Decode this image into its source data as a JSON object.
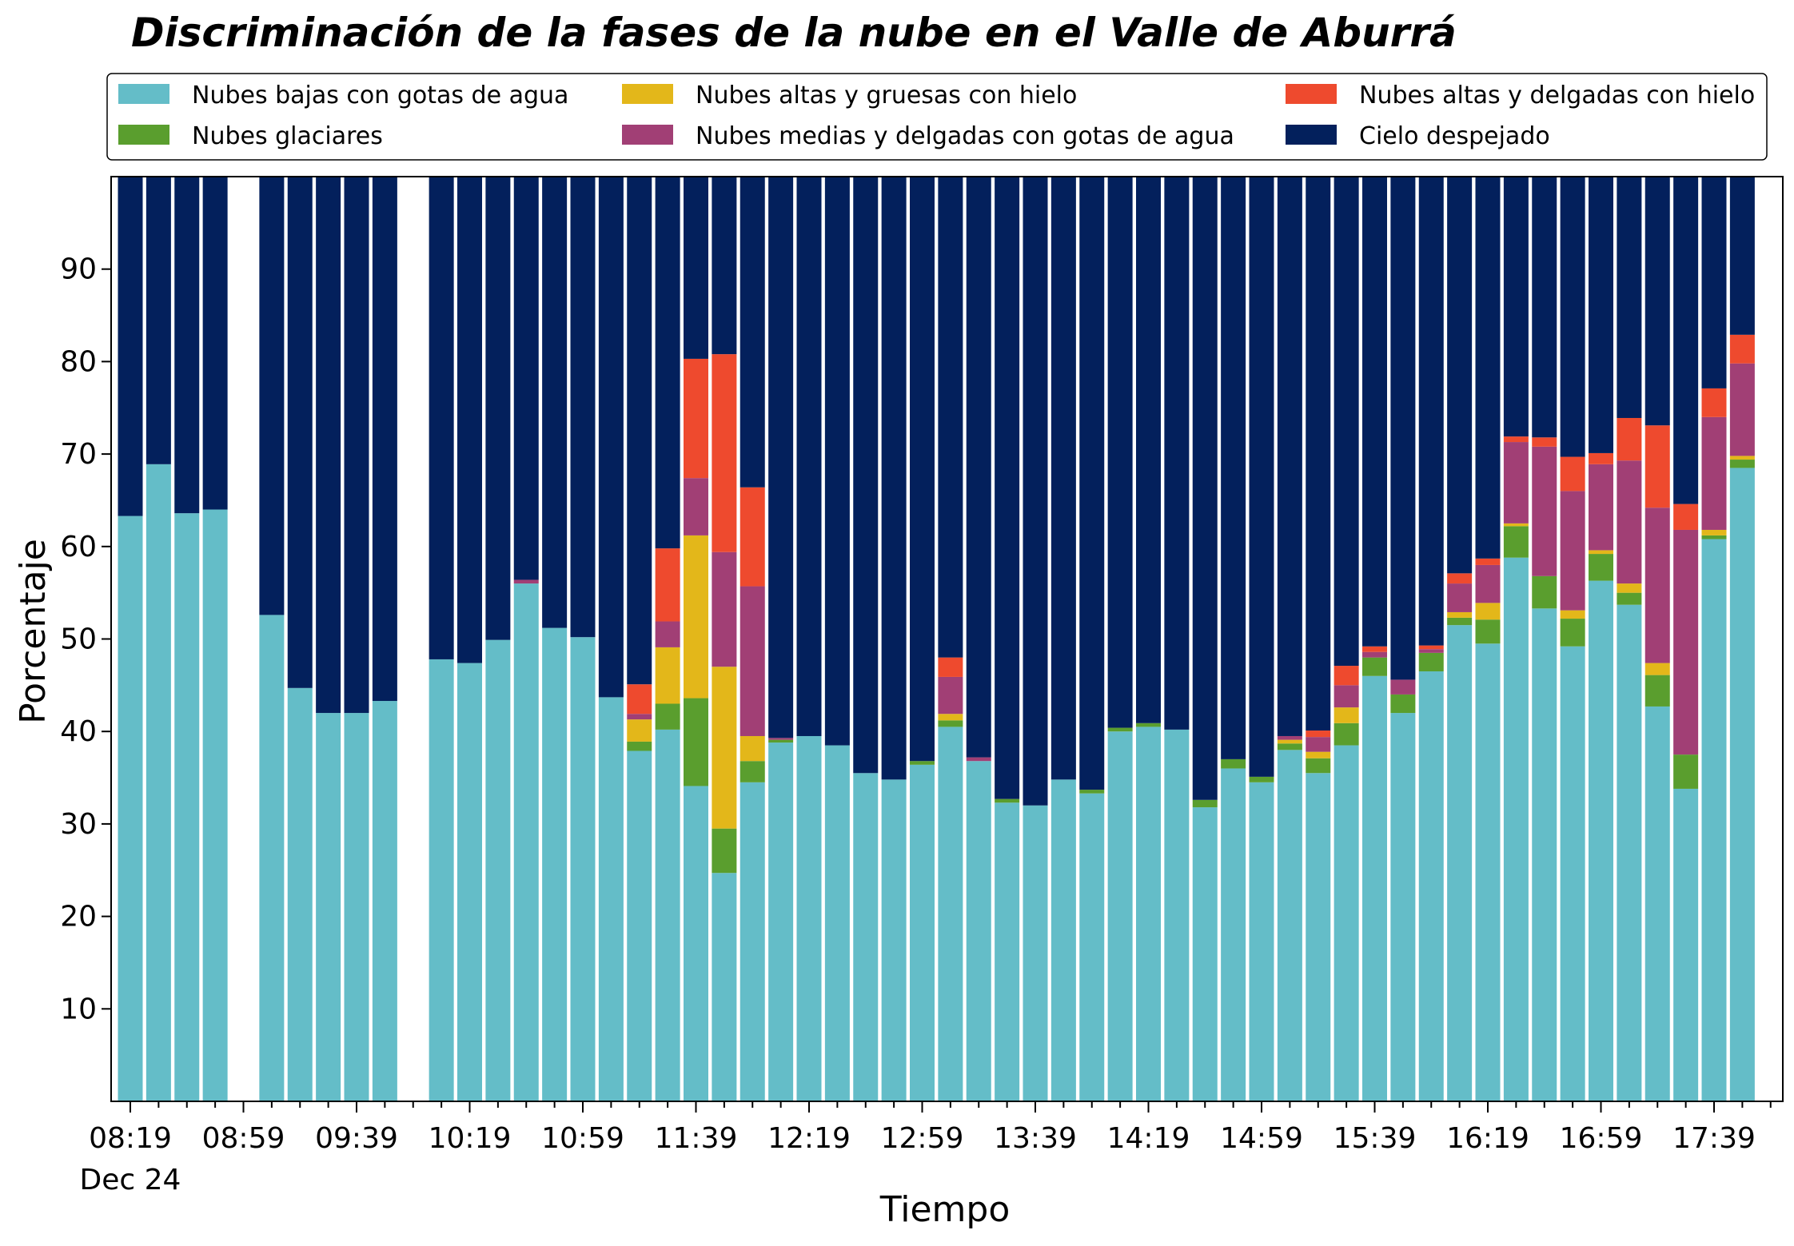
{
  "chart_data": {
    "type": "bar",
    "stacked": true,
    "title": "Discriminación de la fases de la nube en el Valle de Aburrá",
    "xlabel": "Tiempo",
    "ylabel": "Porcentaje",
    "ylim": [
      0,
      100
    ],
    "yticks": [
      10,
      20,
      30,
      40,
      50,
      60,
      70,
      80,
      90
    ],
    "x_start": "08:19",
    "x_interval_minutes": 10,
    "x_count": 59,
    "xtick_labels": [
      "08:19",
      "08:59",
      "09:39",
      "10:19",
      "10:59",
      "11:39",
      "12:19",
      "12:59",
      "13:39",
      "14:19",
      "14:59",
      "15:39",
      "16:19",
      "16:59",
      "17:39"
    ],
    "xtick_sublabel": "Dec 24",
    "xtick_label_every": 4,
    "grid": false,
    "legend_position": "top",
    "series": [
      {
        "name": "Nubes bajas con gotas de agua",
        "color": "#64bdc8",
        "values": [
          63.3,
          68.9,
          63.6,
          64.0,
          null,
          52.6,
          44.7,
          42.0,
          42.0,
          43.3,
          null,
          47.8,
          47.4,
          49.9,
          56.0,
          51.2,
          50.2,
          43.7,
          37.9,
          40.2,
          34.1,
          24.7,
          34.5,
          38.8,
          39.5,
          38.5,
          35.5,
          34.8,
          36.4,
          40.5,
          36.8,
          32.3,
          32.0,
          34.8,
          33.3,
          40.0,
          40.5,
          40.2,
          31.8,
          36.0,
          34.5,
          38.0,
          35.5,
          38.5,
          46.0,
          42.0,
          46.5,
          51.5,
          49.5,
          58.8,
          53.3,
          49.2,
          56.3,
          53.7,
          42.7,
          33.8,
          60.8,
          68.5,
          null
        ]
      },
      {
        "name": "Nubes glaciares",
        "color": "#5a9e2e",
        "values": [
          0,
          0,
          0,
          0,
          null,
          0,
          0,
          0,
          0,
          0,
          null,
          0,
          0,
          0,
          0,
          0,
          0,
          0,
          1.0,
          2.8,
          9.5,
          4.8,
          2.3,
          0.3,
          0,
          0,
          0,
          0,
          0.4,
          0.7,
          0,
          0.4,
          0,
          0,
          0.4,
          0.4,
          0.4,
          0,
          0.8,
          1.0,
          0.6,
          0.7,
          1.6,
          2.4,
          2.0,
          2.0,
          2.0,
          0.8,
          2.6,
          3.4,
          3.5,
          3.0,
          2.9,
          1.3,
          3.4,
          3.7,
          0.4,
          0.9,
          null
        ]
      },
      {
        "name": "Nubes altas y gruesas con hielo",
        "color": "#e3b71a",
        "values": [
          0,
          0,
          0,
          0,
          null,
          0,
          0,
          0,
          0,
          0,
          null,
          0,
          0,
          0,
          0,
          0,
          0,
          0,
          2.4,
          6.1,
          17.6,
          17.5,
          2.7,
          0,
          0,
          0,
          0,
          0,
          0,
          0.7,
          0,
          0,
          0,
          0,
          0,
          0,
          0,
          0,
          0,
          0,
          0,
          0.4,
          0.7,
          1.7,
          0,
          0,
          0,
          0.6,
          1.8,
          0.3,
          0,
          0.9,
          0.4,
          1.0,
          1.3,
          0,
          0.6,
          0.4,
          null
        ]
      },
      {
        "name": "Nubes medias y delgadas con gotas de agua",
        "color": "#a13f75",
        "values": [
          0,
          0,
          0,
          0,
          null,
          0,
          0,
          0,
          0,
          0,
          null,
          0,
          0,
          0,
          0.4,
          0,
          0,
          0,
          0.6,
          2.8,
          6.2,
          12.4,
          16.2,
          0.2,
          0,
          0,
          0,
          0,
          0,
          4.0,
          0.4,
          0,
          0,
          0,
          0,
          0,
          0,
          0,
          0,
          0,
          0,
          0.4,
          1.6,
          2.4,
          0.6,
          1.6,
          0.4,
          3.1,
          4.1,
          8.8,
          14.0,
          12.9,
          9.3,
          13.3,
          16.8,
          24.3,
          12.2,
          10.0,
          null
        ]
      },
      {
        "name": "Nubes altas y delgadas con hielo",
        "color": "#ee4a2e",
        "values": [
          0,
          0,
          0,
          0,
          null,
          0,
          0,
          0,
          0,
          0,
          null,
          0,
          0,
          0,
          0,
          0,
          0,
          0,
          3.2,
          7.9,
          12.9,
          21.4,
          10.7,
          0,
          0,
          0,
          0,
          0,
          0,
          2.1,
          0,
          0,
          0,
          0,
          0,
          0,
          0,
          0,
          0,
          0,
          0,
          0,
          0.7,
          2.1,
          0.6,
          0,
          0.4,
          1.1,
          0.7,
          0.6,
          1.0,
          3.7,
          1.2,
          4.6,
          8.9,
          2.8,
          3.1,
          3.1,
          null
        ]
      },
      {
        "name": "Cielo despejado",
        "color": "#03205c",
        "values": [
          36.7,
          31.1,
          36.4,
          36.0,
          null,
          47.4,
          55.3,
          58.0,
          58.0,
          56.7,
          null,
          52.2,
          52.6,
          50.1,
          43.6,
          48.8,
          49.8,
          56.3,
          54.9,
          40.2,
          19.7,
          19.2,
          33.6,
          60.7,
          60.5,
          61.5,
          64.5,
          65.2,
          63.2,
          52.0,
          62.8,
          67.3,
          68.0,
          65.2,
          66.3,
          59.6,
          59.1,
          59.8,
          67.4,
          63.0,
          64.9,
          60.5,
          59.9,
          52.9,
          50.8,
          54.4,
          50.7,
          42.9,
          41.3,
          28.1,
          28.2,
          30.3,
          29.9,
          26.1,
          26.9,
          35.4,
          22.9,
          17.1,
          null
        ]
      }
    ]
  }
}
